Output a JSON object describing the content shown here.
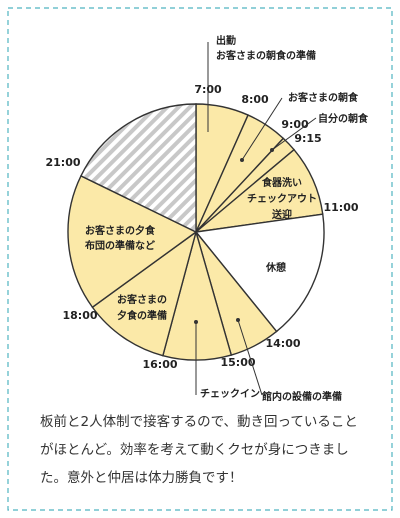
{
  "times": [
    "7:00",
    "8:00",
    "9:00",
    "9:15",
    "11:00",
    "14:00",
    "15:00",
    "16:00",
    "18:00",
    "21:00"
  ],
  "segments": [
    {
      "lines": [
        "出勤",
        "お客さまの朝食の準備"
      ]
    },
    {
      "lines": [
        "お客さまの朝食"
      ]
    },
    {
      "lines": [
        "自分の朝食"
      ]
    },
    {
      "lines": [
        "食器洗い",
        "チェックアウト",
        "送迎"
      ]
    },
    {
      "lines": [
        "休憩"
      ]
    },
    {
      "lines": [
        "館内の設備の準備"
      ]
    },
    {
      "lines": [
        "チェックイン"
      ]
    },
    {
      "lines": [
        "お客さまの",
        "夕食の準備"
      ]
    },
    {
      "lines": [
        "お客さまの夕食",
        "布団の準備など"
      ]
    }
  ],
  "caption": [
    "板前と2人体制で接客するので、動き回っていること",
    "がほとんど。効率を考えて動くクセが身につきまし",
    "た。意外と仲居は体力勝負です！"
  ]
}
